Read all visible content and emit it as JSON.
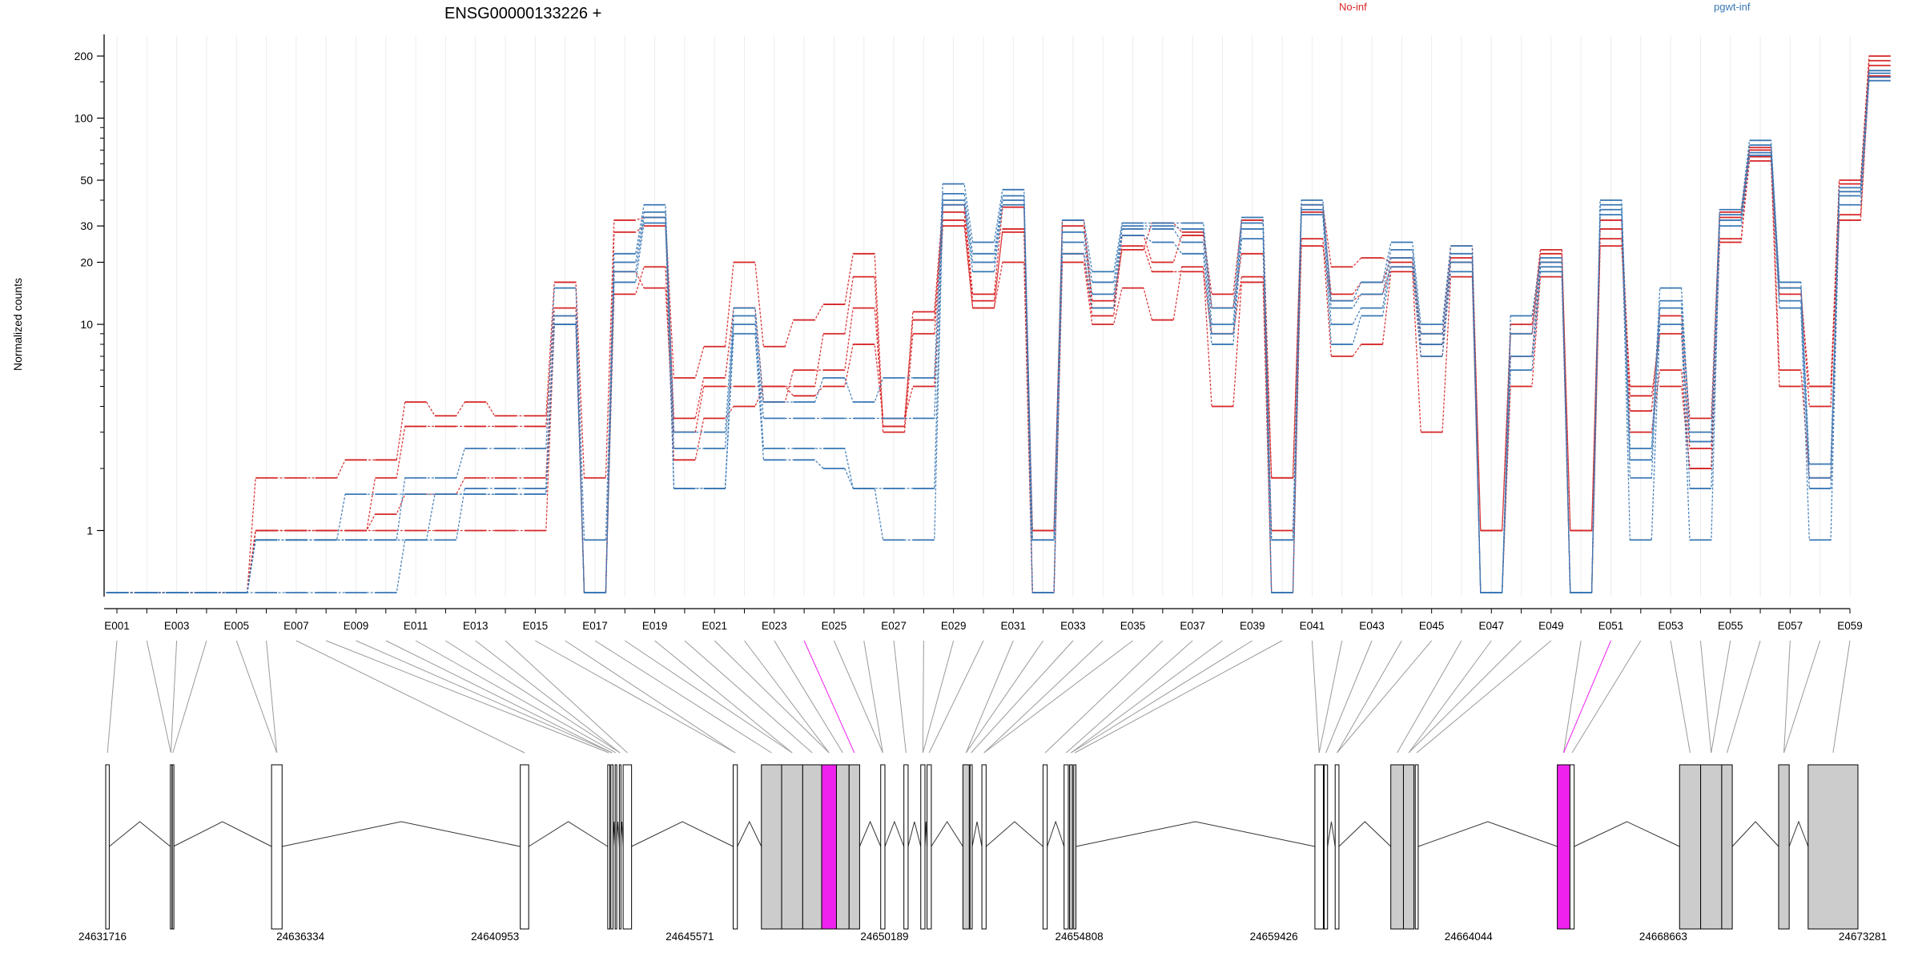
{
  "chart_data": {
    "type": "line",
    "title": "ENSG00000133226 +",
    "ylabel": "Normalized counts",
    "yscale": "log",
    "y_ticks": [
      1,
      10,
      20,
      30,
      50,
      100,
      200
    ],
    "legend": [
      {
        "name": "No-inf",
        "color": "#d62728"
      },
      {
        "name": "pgwt-inf",
        "color": "#3a78b5"
      }
    ],
    "highlight_color": "#ee22ee",
    "exon_labels": [
      "E001",
      "E003",
      "E005",
      "E007",
      "E009",
      "E011",
      "E013",
      "E015",
      "E017",
      "E019",
      "E021",
      "E023",
      "E025",
      "E027",
      "E029",
      "E031",
      "E033",
      "E035",
      "E037",
      "E039",
      "E041",
      "E043",
      "E045",
      "E047",
      "E049",
      "E051",
      "E053",
      "E055",
      "E057",
      "E059"
    ],
    "highlighted_exons": [
      "E024",
      "E051"
    ],
    "exons": [
      {
        "start": 24631716,
        "end": 24631800,
        "shaded": false
      },
      {
        "start": 24633250,
        "end": 24633275,
        "shaded": false
      },
      {
        "start": 24633295,
        "end": 24633320,
        "shaded": false
      },
      {
        "start": 24635650,
        "end": 24635900,
        "shaded": false
      },
      {
        "start": 24641550,
        "end": 24641750,
        "shaded": false
      },
      {
        "start": 24643625,
        "end": 24643675,
        "shaded": false
      },
      {
        "start": 24643700,
        "end": 24643750,
        "shaded": false
      },
      {
        "start": 24643800,
        "end": 24643830,
        "shaded": false
      },
      {
        "start": 24643900,
        "end": 24643930,
        "shaded": false
      },
      {
        "start": 24643990,
        "end": 24644190,
        "shaded": false
      },
      {
        "start": 24646600,
        "end": 24646700,
        "shaded": false
      },
      {
        "start": 24647270,
        "end": 24647750,
        "shaded": true
      },
      {
        "start": 24647750,
        "end": 24648250,
        "shaded": true
      },
      {
        "start": 24648250,
        "end": 24648700,
        "shaded": true
      },
      {
        "start": 24648700,
        "end": 24649050,
        "shaded": true,
        "highlight": true
      },
      {
        "start": 24649050,
        "end": 24649350,
        "shaded": true
      },
      {
        "start": 24649350,
        "end": 24649600,
        "shaded": true
      },
      {
        "start": 24650100,
        "end": 24650200,
        "shaded": false
      },
      {
        "start": 24650650,
        "end": 24650750,
        "shaded": false
      },
      {
        "start": 24651050,
        "end": 24651150,
        "shaded": false
      },
      {
        "start": 24651200,
        "end": 24651300,
        "shaded": false
      },
      {
        "start": 24652050,
        "end": 24652200,
        "shaded": true
      },
      {
        "start": 24652220,
        "end": 24652270,
        "shaded": false
      },
      {
        "start": 24652500,
        "end": 24652600,
        "shaded": false
      },
      {
        "start": 24653950,
        "end": 24654050,
        "shaded": false
      },
      {
        "start": 24654450,
        "end": 24654550,
        "shaded": false
      },
      {
        "start": 24654580,
        "end": 24654650,
        "shaded": true
      },
      {
        "start": 24654680,
        "end": 24654730,
        "shaded": false
      },
      {
        "start": 24660400,
        "end": 24660600,
        "shaded": false
      },
      {
        "start": 24660620,
        "end": 24660700,
        "shaded": false
      },
      {
        "start": 24660880,
        "end": 24660970,
        "shaded": false
      },
      {
        "start": 24662200,
        "end": 24662500,
        "shaded": true
      },
      {
        "start": 24662500,
        "end": 24662750,
        "shaded": true
      },
      {
        "start": 24662780,
        "end": 24662850,
        "shaded": false
      },
      {
        "start": 24666150,
        "end": 24666450,
        "shaded": true,
        "highlight": true
      },
      {
        "start": 24666450,
        "end": 24666550,
        "shaded": false
      },
      {
        "start": 24669050,
        "end": 24669550,
        "shaded": true
      },
      {
        "start": 24669550,
        "end": 24670050,
        "shaded": true
      },
      {
        "start": 24670050,
        "end": 24670300,
        "shaded": true
      },
      {
        "start": 24671400,
        "end": 24671650,
        "shaded": true
      },
      {
        "start": 24672100,
        "end": 24673281,
        "shaded": true
      }
    ],
    "genome_range": [
      24631716,
      24673281
    ],
    "coordinate_labels": [
      "24631716",
      "24636334",
      "24640953",
      "24645571",
      "24650189",
      "24654808",
      "24659426",
      "24664044",
      "24668663",
      "24673281"
    ],
    "series": [
      {
        "group": "No-inf",
        "values": [
          0.5,
          0.5,
          0.5,
          0.5,
          0.5,
          1.8,
          1.8,
          1.8,
          2.2,
          2.2,
          4.2,
          3.6,
          4.2,
          3.6,
          3.6,
          16,
          1.8,
          32,
          33,
          5.5,
          7.8,
          20,
          7.8,
          10.5,
          12.5,
          22,
          3.2,
          11.5,
          38,
          14,
          37,
          1,
          32,
          13,
          23,
          31,
          28,
          14,
          32,
          1.8,
          38,
          19,
          21,
          20,
          9,
          24,
          1,
          10,
          23,
          1,
          29,
          3.8,
          11,
          3.5,
          35,
          70,
          15,
          4,
          50,
          200
        ]
      },
      {
        "group": "No-inf",
        "values": [
          0.5,
          0.5,
          0.5,
          0.5,
          0.5,
          1,
          1,
          1,
          1,
          1.8,
          3.2,
          3.2,
          3.2,
          3.2,
          3.2,
          12,
          0.5,
          28,
          30,
          3.5,
          5.5,
          12,
          4.2,
          6,
          6,
          12,
          3.5,
          10.5,
          35,
          13,
          28,
          1,
          30,
          12,
          27,
          20,
          27,
          12,
          22,
          1.8,
          35,
          14,
          16,
          21,
          8,
          21,
          1,
          9,
          22,
          1,
          32,
          4.5,
          9,
          2.5,
          33,
          65,
          14,
          5,
          48,
          190
        ]
      },
      {
        "group": "No-inf",
        "values": [
          0.5,
          0.5,
          0.5,
          0.5,
          0.5,
          1,
          1,
          1,
          1,
          1.2,
          1.5,
          1.5,
          1.8,
          1.8,
          1.8,
          11,
          0.5,
          18,
          15,
          3,
          5,
          5,
          5,
          5,
          9,
          17,
          3,
          9,
          32,
          12,
          29,
          0.5,
          20,
          10,
          15,
          10.5,
          19,
          4,
          16,
          0.5,
          26,
          7,
          8,
          18,
          3,
          17,
          0.5,
          5,
          17,
          0.5,
          24,
          5,
          5,
          2,
          26,
          62,
          5,
          5,
          32,
          160
        ]
      },
      {
        "group": "No-inf",
        "values": [
          0.5,
          0.5,
          0.5,
          0.5,
          0.5,
          1,
          1,
          1,
          1,
          1,
          1,
          1,
          1,
          1,
          1,
          10,
          0.5,
          14,
          19,
          2.2,
          3.5,
          4,
          5,
          4.5,
          5,
          8,
          3.5,
          5,
          30,
          12,
          20,
          0.5,
          22,
          11,
          24,
          18,
          18,
          9,
          17,
          1,
          24,
          13,
          14,
          19,
          7,
          20,
          0.5,
          7,
          20,
          0.5,
          26,
          3,
          6,
          2,
          25,
          72,
          6,
          1.8,
          34,
          180
        ]
      },
      {
        "group": "pgwt-inf",
        "values": [
          0.5,
          0.5,
          0.5,
          0.5,
          0.5,
          0.9,
          0.9,
          0.9,
          0.9,
          0.9,
          1.8,
          1.8,
          2.5,
          2.5,
          2.5,
          15,
          0.9,
          22,
          38,
          3,
          3,
          12,
          4.2,
          4.2,
          5.5,
          4.2,
          5.5,
          5.5,
          48,
          25,
          45,
          0.9,
          32,
          18,
          31,
          31,
          31,
          12,
          33,
          0.9,
          40,
          13,
          16,
          25,
          10,
          24,
          0.5,
          11,
          21,
          0.5,
          40,
          2.5,
          15,
          3,
          36,
          78,
          16,
          2.1,
          46,
          170
        ]
      },
      {
        "group": "pgwt-inf",
        "values": [
          0.5,
          0.5,
          0.5,
          0.5,
          0.5,
          0.9,
          0.9,
          0.9,
          0.9,
          0.9,
          0.9,
          1.5,
          1.5,
          1.5,
          1.5,
          10,
          0.5,
          20,
          35,
          2.5,
          2.5,
          10,
          3.5,
          3.5,
          3.5,
          3.5,
          3.5,
          3.5,
          43,
          22,
          42,
          0.9,
          28,
          16,
          30,
          30,
          29,
          10,
          31,
          0.9,
          38,
          12,
          14,
          23,
          9,
          22,
          0.5,
          9,
          20,
          0.5,
          38,
          2.2,
          13,
          2.7,
          34,
          74,
          15,
          1.8,
          44,
          165
        ]
      },
      {
        "group": "pgwt-inf",
        "values": [
          0.5,
          0.5,
          0.5,
          0.5,
          0.5,
          0.9,
          0.9,
          0.9,
          1.5,
          1.5,
          1.5,
          1.5,
          1.5,
          1.5,
          1.5,
          11,
          0.5,
          18,
          33,
          1.6,
          1.6,
          11,
          2.5,
          2.5,
          2.5,
          1.6,
          1.6,
          1.6,
          40,
          20,
          40,
          0.5,
          25,
          14,
          29,
          29,
          25,
          9,
          29,
          0.5,
          36,
          10,
          12,
          21,
          8,
          20,
          0.5,
          7,
          19,
          0.5,
          36,
          1.8,
          12,
          1.6,
          32,
          68,
          13,
          1.6,
          42,
          158
        ]
      },
      {
        "group": "pgwt-inf",
        "values": [
          0.5,
          0.5,
          0.5,
          0.5,
          0.5,
          0.5,
          0.5,
          0.5,
          0.5,
          0.5,
          0.9,
          0.9,
          1.6,
          1.6,
          1.6,
          10,
          0.5,
          16,
          31,
          1.6,
          1.6,
          9,
          2.2,
          2.2,
          2,
          1.6,
          0.9,
          0.9,
          38,
          18,
          38,
          0.5,
          22,
          12,
          27,
          25,
          22,
          8,
          26,
          0.5,
          34,
          8,
          11,
          19,
          7,
          18,
          0.5,
          6,
          18,
          0.5,
          34,
          0.9,
          10,
          0.9,
          30,
          66,
          12,
          0.9,
          38,
          152
        ]
      }
    ]
  }
}
